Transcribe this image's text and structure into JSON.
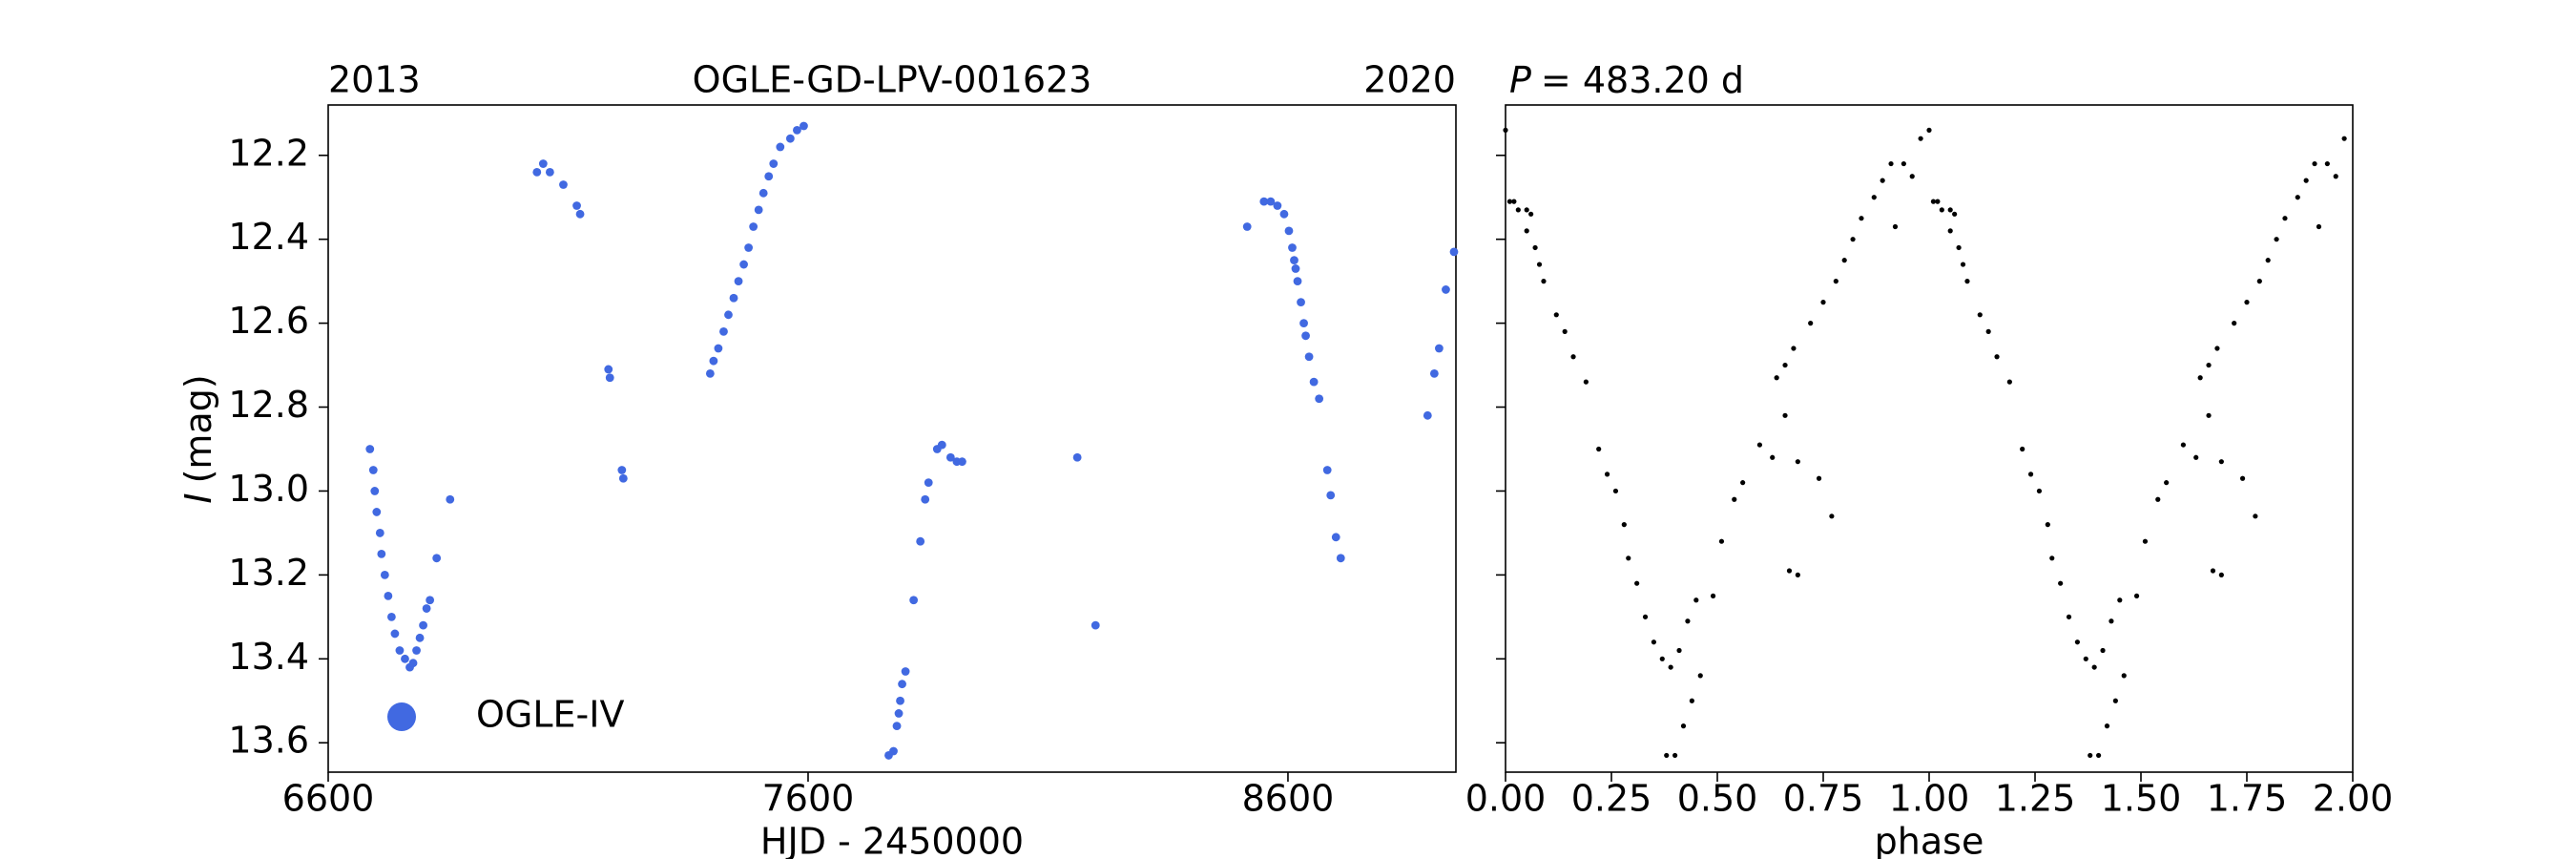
{
  "chart_data": [
    {
      "type": "scatter",
      "title": "OGLE-GD-LPV-001623",
      "left_label": "2013",
      "right_label": "2020",
      "xlabel": "HJD - 2450000",
      "ylabel_symbol": "I",
      "ylabel_unit": "(mag)",
      "xlim": [
        6600,
        8950
      ],
      "ylim": [
        12.08,
        13.67
      ],
      "y_inverted": true,
      "xticks": [
        6600,
        7600,
        8600
      ],
      "yticks": [
        12.2,
        12.4,
        12.6,
        12.8,
        {
          "value": 13,
          "label": "13.0"
        },
        13.2,
        13.4,
        13.6
      ],
      "legend": "lower left",
      "x": [
        6687,
        6694,
        6697,
        6701,
        6708,
        6711,
        6718,
        6725,
        6732,
        6739,
        6749,
        6760,
        6770,
        6777,
        6784,
        6791,
        6798,
        6805,
        6812,
        6826,
        6854,
        7035,
        7048,
        7062,
        7090,
        7118,
        7125,
        7184,
        7187,
        7212,
        7215,
        7396,
        7403,
        7413,
        7424,
        7434,
        7445,
        7455,
        7466,
        7476,
        7486,
        7497,
        7507,
        7518,
        7528,
        7542,
        7563,
        7577,
        7591,
        7768,
        7778,
        7785,
        7789,
        7792,
        7796,
        7803,
        7820,
        7834,
        7844,
        7851,
        7869,
        7879,
        7897,
        7910,
        7921,
        8161,
        8199,
        8515,
        8550,
        8564,
        8578,
        8592,
        8602,
        8609,
        8613,
        8616,
        8620,
        8627,
        8633,
        8637,
        8644,
        8654,
        8665,
        8682,
        8689,
        8700,
        8710,
        8891,
        8905,
        8915,
        8929,
        8946
      ],
      "series": [
        {
          "name": "OGLE-IV",
          "color": "#4169e1",
          "values": [
            12.9,
            12.95,
            13.0,
            13.05,
            13.1,
            13.15,
            13.2,
            13.25,
            13.3,
            13.34,
            13.38,
            13.4,
            13.42,
            13.41,
            13.38,
            13.35,
            13.32,
            13.28,
            13.26,
            13.16,
            13.02,
            12.24,
            12.22,
            12.24,
            12.27,
            12.32,
            12.34,
            12.71,
            12.73,
            12.95,
            12.97,
            12.72,
            12.69,
            12.66,
            12.62,
            12.58,
            12.54,
            12.5,
            12.46,
            12.42,
            12.37,
            12.33,
            12.29,
            12.25,
            12.22,
            12.18,
            12.16,
            12.14,
            12.13,
            13.63,
            13.62,
            13.56,
            13.53,
            13.5,
            13.46,
            13.43,
            13.26,
            13.12,
            13.02,
            12.98,
            12.9,
            12.89,
            12.92,
            12.93,
            12.93,
            12.92,
            13.32,
            12.37,
            12.31,
            12.31,
            12.32,
            12.34,
            12.38,
            12.42,
            12.45,
            12.47,
            12.5,
            12.55,
            12.6,
            12.63,
            12.68,
            12.74,
            12.78,
            12.95,
            13.01,
            13.11,
            13.16,
            12.82,
            12.72,
            12.66,
            12.52,
            12.43
          ]
        }
      ]
    },
    {
      "type": "scatter",
      "period_symbol": "P",
      "period_text": "= 483.20 d",
      "xlabel": "phase",
      "xlim": [
        0,
        2
      ],
      "ylim": [
        12.08,
        13.67
      ],
      "y_inverted": true,
      "xticks": [
        {
          "value": 0,
          "label": "0.00"
        },
        {
          "value": 0.25,
          "label": "0.25"
        },
        {
          "value": 0.5,
          "label": "0.50"
        },
        {
          "value": 0.75,
          "label": "0.75"
        },
        {
          "value": 1,
          "label": "1.00"
        },
        {
          "value": 1.25,
          "label": "1.25"
        },
        {
          "value": 1.5,
          "label": "1.50"
        },
        {
          "value": 1.75,
          "label": "1.75"
        },
        {
          "value": 2,
          "label": "2.00"
        }
      ],
      "yticks": [
        12.2,
        12.4,
        12.6,
        12.8,
        13,
        13.2,
        13.4,
        13.6
      ],
      "x": [
        0.0,
        0.01,
        0.02,
        0.03,
        0.05,
        0.06,
        0.05,
        0.07,
        0.08,
        0.09,
        0.12,
        0.14,
        0.16,
        0.19,
        0.22,
        0.24,
        0.26,
        0.28,
        0.29,
        0.31,
        0.33,
        0.35,
        0.37,
        0.39,
        0.41,
        0.43,
        0.45,
        0.38,
        0.4,
        0.42,
        0.44,
        0.46,
        0.49,
        0.51,
        0.54,
        0.56,
        0.6,
        0.63,
        0.64,
        0.66,
        0.68,
        0.66,
        0.67,
        0.69,
        0.69,
        0.72,
        0.75,
        0.78,
        0.8,
        0.82,
        0.84,
        0.87,
        0.89,
        0.91,
        0.94,
        0.96,
        0.74,
        0.77,
        0.92,
        0.98,
        1.0,
        1.01,
        1.02,
        1.03,
        1.05,
        1.06,
        1.05,
        1.07,
        1.08,
        1.09,
        1.12,
        1.14,
        1.16,
        1.19,
        1.22,
        1.24,
        1.26,
        1.28,
        1.29,
        1.31,
        1.33,
        1.35,
        1.37,
        1.39,
        1.41,
        1.43,
        1.45,
        1.38,
        1.4,
        1.42,
        1.44,
        1.46,
        1.49,
        1.51,
        1.54,
        1.56,
        1.6,
        1.63,
        1.64,
        1.66,
        1.68,
        1.66,
        1.67,
        1.69,
        1.69,
        1.72,
        1.75,
        1.78,
        1.8,
        1.82,
        1.84,
        1.87,
        1.89,
        1.91,
        1.94,
        1.96,
        1.74,
        1.77,
        1.92,
        1.98
      ],
      "series": [
        {
          "color": "#000000",
          "values": [
            12.14,
            12.31,
            12.31,
            12.33,
            12.33,
            12.34,
            12.38,
            12.42,
            12.46,
            12.5,
            12.58,
            12.62,
            12.68,
            12.74,
            12.9,
            12.96,
            13.0,
            13.08,
            13.16,
            13.22,
            13.3,
            13.36,
            13.4,
            13.42,
            13.38,
            13.31,
            13.26,
            13.63,
            13.63,
            13.56,
            13.5,
            13.44,
            13.25,
            13.12,
            13.02,
            12.98,
            12.89,
            12.92,
            12.73,
            12.7,
            12.66,
            12.82,
            13.19,
            13.2,
            12.93,
            12.6,
            12.55,
            12.5,
            12.45,
            12.4,
            12.35,
            12.3,
            12.26,
            12.22,
            12.22,
            12.25,
            12.97,
            13.06,
            12.37,
            12.16,
            12.14,
            12.31,
            12.31,
            12.33,
            12.33,
            12.34,
            12.38,
            12.42,
            12.46,
            12.5,
            12.58,
            12.62,
            12.68,
            12.74,
            12.9,
            12.96,
            13.0,
            13.08,
            13.16,
            13.22,
            13.3,
            13.36,
            13.4,
            13.42,
            13.38,
            13.31,
            13.26,
            13.63,
            13.63,
            13.56,
            13.5,
            13.44,
            13.25,
            13.12,
            13.02,
            12.98,
            12.89,
            12.92,
            12.73,
            12.7,
            12.66,
            12.82,
            13.19,
            13.2,
            12.93,
            12.6,
            12.55,
            12.5,
            12.45,
            12.4,
            12.35,
            12.3,
            12.26,
            12.22,
            12.22,
            12.25,
            12.97,
            13.06,
            12.37,
            12.16
          ]
        }
      ]
    }
  ]
}
